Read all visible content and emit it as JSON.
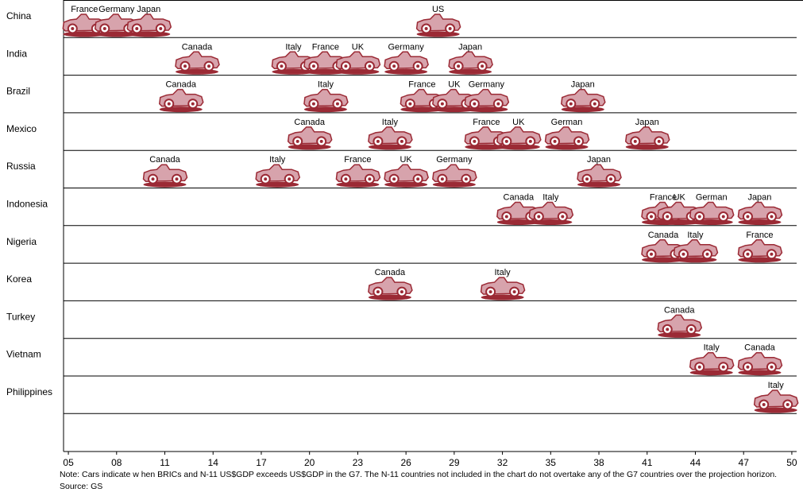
{
  "chart_data": {
    "type": "timeline",
    "xlim": [
      2004.7,
      2050.3
    ],
    "xticks": [
      {
        "value": 2005,
        "label": "05"
      },
      {
        "value": 2008,
        "label": "08"
      },
      {
        "value": 2011,
        "label": "11"
      },
      {
        "value": 2014,
        "label": "14"
      },
      {
        "value": 2017,
        "label": "17"
      },
      {
        "value": 2020,
        "label": "20"
      },
      {
        "value": 2023,
        "label": "23"
      },
      {
        "value": 2026,
        "label": "26"
      },
      {
        "value": 2029,
        "label": "29"
      },
      {
        "value": 2032,
        "label": "32"
      },
      {
        "value": 2035,
        "label": "35"
      },
      {
        "value": 2038,
        "label": "38"
      },
      {
        "value": 2041,
        "label": "41"
      },
      {
        "value": 2044,
        "label": "44"
      },
      {
        "value": 2047,
        "label": "47"
      },
      {
        "value": 2050,
        "label": "50"
      }
    ],
    "color": "#9b2a35",
    "rows": [
      {
        "name": "China",
        "events": [
          {
            "label": "France",
            "year": 2006
          },
          {
            "label": "Germany",
            "year": 2008
          },
          {
            "label": "Japan",
            "year": 2010
          },
          {
            "label": "US",
            "year": 2028
          }
        ]
      },
      {
        "name": "India",
        "events": [
          {
            "label": "Canada",
            "year": 2013
          },
          {
            "label": "Italy",
            "year": 2019
          },
          {
            "label": "France",
            "year": 2021
          },
          {
            "label": "UK",
            "year": 2023
          },
          {
            "label": "Germany",
            "year": 2026
          },
          {
            "label": "Japan",
            "year": 2030
          }
        ]
      },
      {
        "name": "Brazil",
        "events": [
          {
            "label": "Canada",
            "year": 2012
          },
          {
            "label": "Italy",
            "year": 2021
          },
          {
            "label": "France",
            "year": 2027
          },
          {
            "label": "UK",
            "year": 2029
          },
          {
            "label": "Germany",
            "year": 2031
          },
          {
            "label": "Japan",
            "year": 2037
          }
        ]
      },
      {
        "name": "Mexico",
        "events": [
          {
            "label": "Canada",
            "year": 2020
          },
          {
            "label": "Italy",
            "year": 2025
          },
          {
            "label": "France",
            "year": 2031
          },
          {
            "label": "UK",
            "year": 2033
          },
          {
            "label": "German",
            "year": 2036
          },
          {
            "label": "Japan",
            "year": 2041
          }
        ]
      },
      {
        "name": "Russia",
        "events": [
          {
            "label": "Canada",
            "year": 2011
          },
          {
            "label": "Italy",
            "year": 2018
          },
          {
            "label": "France",
            "year": 2023
          },
          {
            "label": "UK",
            "year": 2026
          },
          {
            "label": "Germany",
            "year": 2029
          },
          {
            "label": "Japan",
            "year": 2038
          }
        ]
      },
      {
        "name": "Indonesia",
        "events": [
          {
            "label": "Canada",
            "year": 2033
          },
          {
            "label": "Italy",
            "year": 2035
          },
          {
            "label": "France",
            "year": 2042
          },
          {
            "label": "UK",
            "year": 2043
          },
          {
            "label": "German",
            "year": 2045
          },
          {
            "label": "Japan",
            "year": 2048
          }
        ]
      },
      {
        "name": "Nigeria",
        "events": [
          {
            "label": "Canada",
            "year": 2042
          },
          {
            "label": "Italy",
            "year": 2044
          },
          {
            "label": "France",
            "year": 2048
          }
        ]
      },
      {
        "name": "Korea",
        "events": [
          {
            "label": "Canada",
            "year": 2025
          },
          {
            "label": "Italy",
            "year": 2032
          }
        ]
      },
      {
        "name": "Turkey",
        "events": [
          {
            "label": "Canada",
            "year": 2043
          }
        ]
      },
      {
        "name": "Vietnam",
        "events": [
          {
            "label": "Italy",
            "year": 2045
          },
          {
            "label": "Canada",
            "year": 2048
          }
        ]
      },
      {
        "name": "Philippines",
        "events": [
          {
            "label": "Italy",
            "year": 2049
          }
        ]
      }
    ],
    "note": "Note: Cars indicate w hen BRICs and N-11 US$GDP exceeds US$GDP in the G7. The N-11 countries not included in the chart do not overtake any of the G7 countries over the projection horizon. Source: GS"
  }
}
